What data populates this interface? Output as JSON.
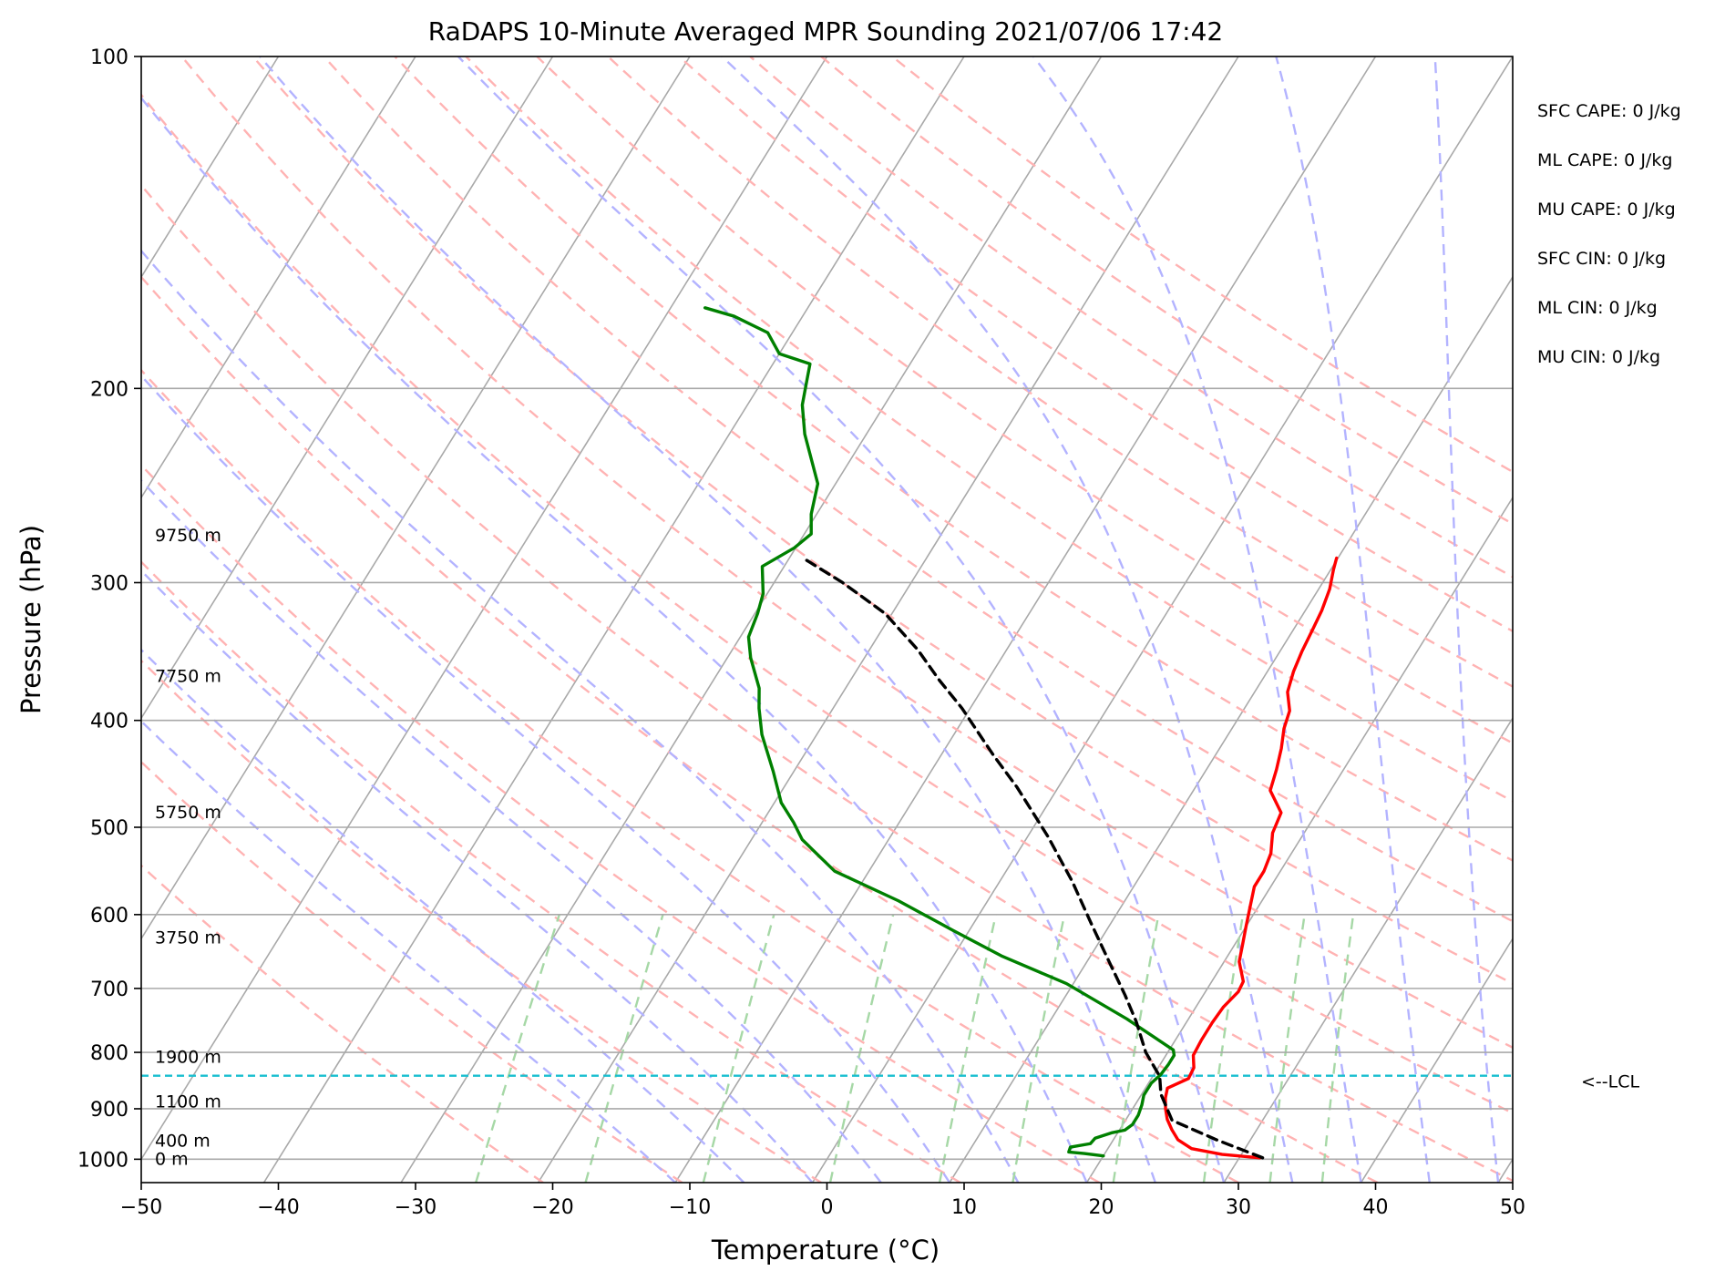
{
  "chart_data": {
    "type": "line",
    "title": "RaDAPS 10-Minute Averaged MPR Sounding 2021/07/06 17:42",
    "xlabel": "Temperature (°C)",
    "ylabel": "Pressure (hPa)",
    "xlim": [
      -50,
      50
    ],
    "ylim": [
      1050,
      100
    ],
    "y_scale": "log",
    "skew_per_decade": 50,
    "x_ticks": [
      -50,
      -40,
      -30,
      -20,
      -10,
      0,
      10,
      20,
      30,
      40,
      50
    ],
    "x_tick_labels": [
      "−50",
      "−40",
      "−30",
      "−20",
      "−10",
      "0",
      "10",
      "20",
      "30",
      "40",
      "50"
    ],
    "y_ticks": [
      100,
      200,
      300,
      400,
      500,
      600,
      700,
      800,
      900,
      1000
    ],
    "y_tick_labels": [
      "100",
      "200",
      "300",
      "400",
      "500",
      "600",
      "700",
      "800",
      "900",
      "1000"
    ],
    "height_labels": [
      {
        "text": "9750 m",
        "p": 272
      },
      {
        "text": "7750 m",
        "p": 365
      },
      {
        "text": "5750 m",
        "p": 485
      },
      {
        "text": "3750 m",
        "p": 630
      },
      {
        "text": "1900 m",
        "p": 808
      },
      {
        "text": "1100 m",
        "p": 887
      },
      {
        "text": "400 m",
        "p": 963
      },
      {
        "text": "0 m",
        "p": 1000
      }
    ],
    "stats": [
      "SFC CAPE: 0 J/kg",
      "ML CAPE: 0 J/kg",
      "MU CAPE: 0 J/kg",
      "SFC CIN: 0 J/kg",
      "ML CIN: 0 J/kg",
      "MU CIN: 0 J/kg"
    ],
    "lcl": {
      "label": "<--LCL",
      "p": 840
    },
    "colors": {
      "temperature": "#ff0000",
      "dewpoint": "#008000",
      "parcel": "#000000",
      "lcl": "#17becf",
      "isotherm": "#a9a9a9",
      "dry_adiabat": "#ffb3b3",
      "moist_adiabat": "#b3b3ff",
      "mixing_ratio": "#a6d8a6"
    },
    "series": [
      {
        "name": "",
        "role": "temperature",
        "points": [
          [
            31.5,
            997
          ],
          [
            28.6,
            990
          ],
          [
            26.1,
            978
          ],
          [
            24.7,
            960
          ],
          [
            23.8,
            940
          ],
          [
            23.0,
            920
          ],
          [
            22.4,
            900
          ],
          [
            21.9,
            880
          ],
          [
            21.6,
            862
          ],
          [
            22.7,
            845
          ],
          [
            22.6,
            826
          ],
          [
            22.0,
            805
          ],
          [
            21.9,
            780
          ],
          [
            21.9,
            752
          ],
          [
            22.0,
            728
          ],
          [
            22.4,
            705
          ],
          [
            22.3,
            690
          ],
          [
            21.1,
            662
          ],
          [
            20.6,
            640
          ],
          [
            20.0,
            615
          ],
          [
            19.4,
            590
          ],
          [
            18.8,
            566
          ],
          [
            18.8,
            548
          ],
          [
            18.5,
            528
          ],
          [
            17.7,
            506
          ],
          [
            17.4,
            485
          ],
          [
            15.6,
            463
          ],
          [
            15.1,
            443
          ],
          [
            14.5,
            424
          ],
          [
            13.8,
            407
          ],
          [
            13.4,
            392
          ],
          [
            12.4,
            377
          ],
          [
            11.9,
            361
          ],
          [
            11.6,
            346
          ],
          [
            11.4,
            331
          ],
          [
            11.2,
            318
          ],
          [
            10.8,
            304
          ],
          [
            10.2,
            292
          ],
          [
            9.9,
            285
          ]
        ]
      },
      {
        "name": "",
        "role": "dewpoint",
        "points": [
          [
            20.0,
            993
          ],
          [
            18.5,
            988
          ],
          [
            17.3,
            985
          ],
          [
            17.2,
            975
          ],
          [
            18.5,
            968
          ],
          [
            18.6,
            957
          ],
          [
            19.6,
            946
          ],
          [
            20.4,
            941
          ],
          [
            20.7,
            930
          ],
          [
            20.7,
            912
          ],
          [
            20.5,
            893
          ],
          [
            20.2,
            875
          ],
          [
            20.2,
            853
          ],
          [
            20.5,
            838
          ],
          [
            20.6,
            820
          ],
          [
            20.6,
            805
          ],
          [
            20.3,
            796
          ],
          [
            15.5,
            746
          ],
          [
            9.5,
            693
          ],
          [
            3.5,
            654
          ],
          [
            -1.2,
            620
          ],
          [
            -6.5,
            583
          ],
          [
            -12.5,
            548
          ],
          [
            -16.3,
            513
          ],
          [
            -17.7,
            495
          ],
          [
            -19.5,
            475
          ],
          [
            -21.5,
            445
          ],
          [
            -24.0,
            412
          ],
          [
            -25.4,
            390
          ],
          [
            -26.3,
            374
          ],
          [
            -28.3,
            351
          ],
          [
            -29.4,
            336
          ],
          [
            -29.8,
            320
          ],
          [
            -30.3,
            307
          ],
          [
            -31.6,
            290
          ],
          [
            -30.1,
            279
          ],
          [
            -29.5,
            271
          ],
          [
            -30.4,
            260
          ],
          [
            -31.3,
            244
          ],
          [
            -34.5,
            220
          ],
          [
            -36.0,
            207
          ],
          [
            -36.6,
            199
          ],
          [
            -37.3,
            190
          ],
          [
            -40.0,
            186
          ],
          [
            -41.8,
            178
          ],
          [
            -45.0,
            172
          ],
          [
            -47.5,
            169
          ]
        ]
      },
      {
        "name": "",
        "role": "parcel",
        "points": [
          [
            31.7,
            997
          ],
          [
            27.5,
            960
          ],
          [
            23.4,
            922
          ],
          [
            21.4,
            873
          ],
          [
            20.5,
            841
          ],
          [
            18.4,
            800
          ],
          [
            16.3,
            750
          ],
          [
            14.3,
            710
          ],
          [
            11.5,
            660
          ],
          [
            8.5,
            610
          ],
          [
            5.3,
            560
          ],
          [
            1.5,
            510
          ],
          [
            -3.0,
            460
          ],
          [
            -6.2,
            430
          ],
          [
            -10.6,
            390
          ],
          [
            -13.5,
            368
          ],
          [
            -16.5,
            345
          ],
          [
            -20.5,
            320
          ],
          [
            -25.0,
            300
          ],
          [
            -29.0,
            285
          ]
        ]
      }
    ],
    "isotherms": [
      -150,
      -140,
      -130,
      -120,
      -110,
      -100,
      -90,
      -80,
      -70,
      -60,
      -50,
      -40,
      -30,
      -20,
      -10,
      0,
      10,
      20,
      30,
      40,
      50
    ],
    "dry_adiabat_thetas": [
      250,
      260,
      270,
      280,
      290,
      300,
      310,
      320,
      330,
      340,
      350,
      360,
      370,
      380,
      390,
      400,
      410,
      420,
      430,
      440
    ],
    "moist_adiabat_starts": [
      -10,
      -5,
      0,
      5,
      10,
      15,
      20,
      25,
      30,
      35,
      40,
      45,
      50
    ],
    "mixing_ratios_gkg": [
      0.5,
      1,
      2,
      4,
      7,
      10,
      16,
      24,
      32,
      40
    ],
    "mixing_ratio_top_p": 600
  }
}
